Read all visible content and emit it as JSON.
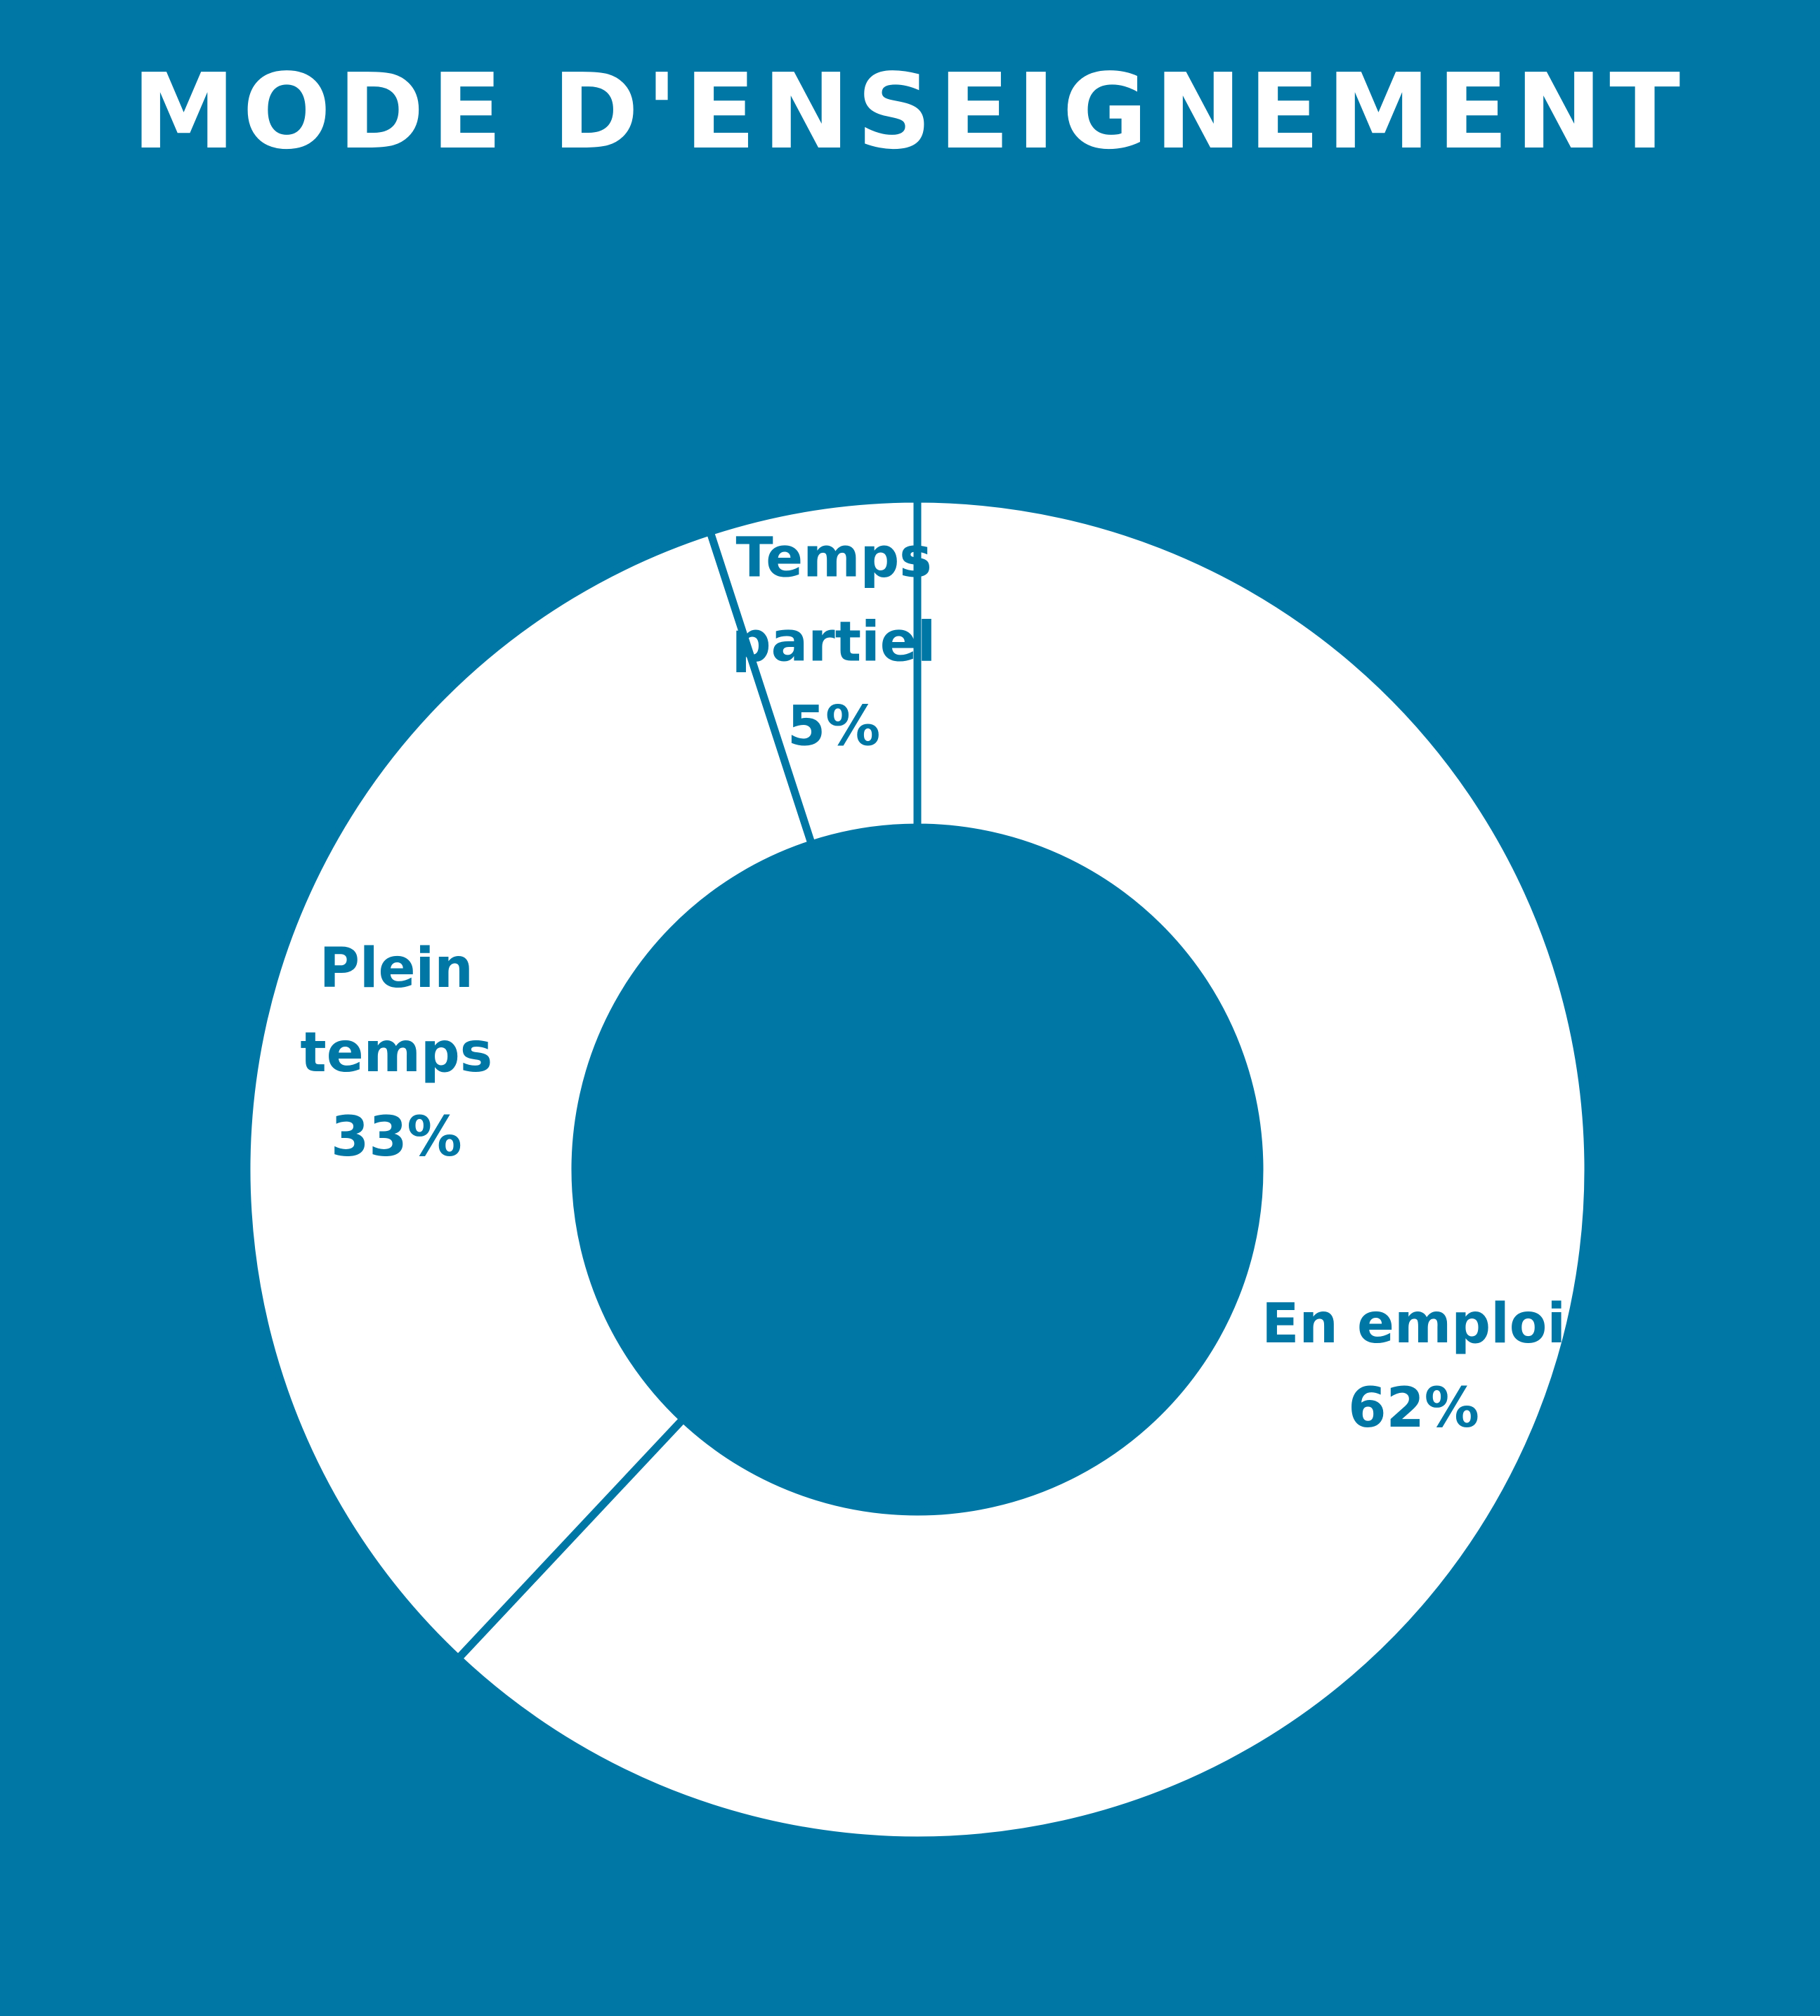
{
  "chart_data": {
    "type": "pie",
    "style": "donut",
    "title": "MODE D'ENSEIGNEMENT",
    "legend": "none",
    "slices": [
      {
        "name": "En emploi",
        "value": 62,
        "value_label": "62%",
        "label_lines": [
          "En emploi",
          "62%"
        ]
      },
      {
        "name": "Plein temps",
        "value": 33,
        "value_label": "33%",
        "label_lines": [
          "Plein",
          "temps",
          "33%"
        ]
      },
      {
        "name": "Temps partiel",
        "value": 5,
        "value_label": "5%",
        "label_lines": [
          "Temps",
          "partiel",
          "5%"
        ]
      }
    ]
  },
  "colors": {
    "background": "#0077a5",
    "slice_fill": "#ffffff",
    "slice_border": "#0077a5",
    "label_text": "#0077a5",
    "title_text": "#ffffff"
  }
}
